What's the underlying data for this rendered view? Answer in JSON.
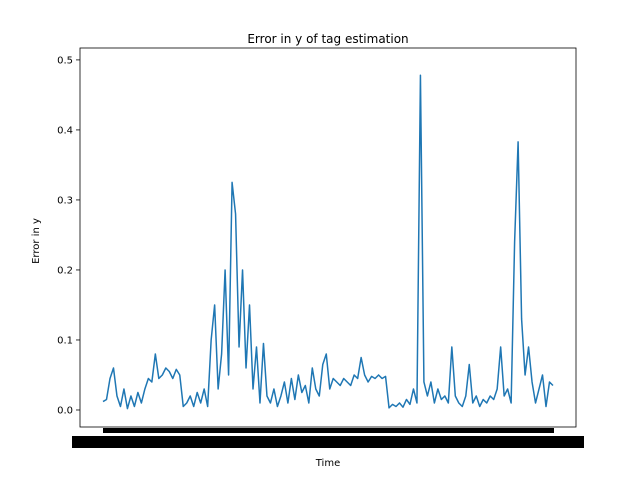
{
  "chart_data": {
    "type": "line",
    "title": "Error in y of tag estimation",
    "xlabel": "Time",
    "ylabel": "Error in y",
    "color": "#1f77b4",
    "x": [
      0,
      1,
      2,
      3,
      4,
      5,
      6,
      7,
      8,
      9,
      10,
      11,
      12,
      13,
      14,
      15,
      16,
      17,
      18,
      19,
      20,
      21,
      22,
      23,
      24,
      25,
      26,
      27,
      28,
      29,
      30,
      31,
      32,
      33,
      34,
      35,
      36,
      37,
      38,
      39,
      40,
      41,
      42,
      43,
      44,
      45,
      46,
      47,
      48,
      49,
      50,
      51,
      52,
      53,
      54,
      55,
      56,
      57,
      58,
      59,
      60,
      61,
      62,
      63,
      64,
      65,
      66,
      67,
      68,
      69,
      70,
      71,
      72,
      73,
      74,
      75,
      76,
      77,
      78,
      79,
      80,
      81,
      82,
      83,
      84,
      85,
      86,
      87,
      88,
      89,
      90,
      91,
      92,
      93,
      94,
      95,
      96,
      97,
      98,
      99,
      100,
      101,
      102,
      103,
      104,
      105,
      106,
      107,
      108,
      109,
      110,
      111,
      112,
      113,
      114,
      115,
      116,
      117,
      118,
      119,
      120,
      121,
      122,
      123,
      124,
      125,
      126,
      127,
      128,
      129
    ],
    "values": [
      0.012,
      0.015,
      0.045,
      0.06,
      0.02,
      0.005,
      0.03,
      0.002,
      0.02,
      0.005,
      0.025,
      0.01,
      0.03,
      0.045,
      0.04,
      0.08,
      0.045,
      0.05,
      0.06,
      0.055,
      0.045,
      0.058,
      0.05,
      0.005,
      0.01,
      0.02,
      0.005,
      0.025,
      0.01,
      0.03,
      0.005,
      0.1,
      0.15,
      0.03,
      0.08,
      0.2,
      0.05,
      0.325,
      0.28,
      0.09,
      0.2,
      0.06,
      0.15,
      0.03,
      0.09,
      0.01,
      0.095,
      0.02,
      0.01,
      0.03,
      0.005,
      0.02,
      0.04,
      0.01,
      0.045,
      0.015,
      0.05,
      0.025,
      0.035,
      0.01,
      0.06,
      0.03,
      0.02,
      0.065,
      0.08,
      0.03,
      0.045,
      0.04,
      0.035,
      0.045,
      0.04,
      0.035,
      0.05,
      0.045,
      0.075,
      0.05,
      0.04,
      0.048,
      0.045,
      0.05,
      0.045,
      0.048,
      0.003,
      0.008,
      0.005,
      0.01,
      0.004,
      0.015,
      0.008,
      0.03,
      0.01,
      0.478,
      0.04,
      0.02,
      0.04,
      0.01,
      0.03,
      0.015,
      0.02,
      0.01,
      0.09,
      0.02,
      0.01,
      0.005,
      0.02,
      0.065,
      0.01,
      0.02,
      0.005,
      0.015,
      0.01,
      0.02,
      0.015,
      0.03,
      0.09,
      0.02,
      0.03,
      0.01,
      0.24,
      0.383,
      0.13,
      0.05,
      0.09,
      0.04,
      0.01,
      0.03,
      0.05,
      0.005,
      0.04,
      0.035
    ],
    "xlim": [
      -6.6,
      135.6
    ],
    "ylim": [
      -0.0243,
      0.517
    ],
    "yticks": [
      {
        "value": 0,
        "label": "0.0"
      },
      0.1,
      0.2,
      0.3,
      0.4,
      0.5
    ]
  }
}
